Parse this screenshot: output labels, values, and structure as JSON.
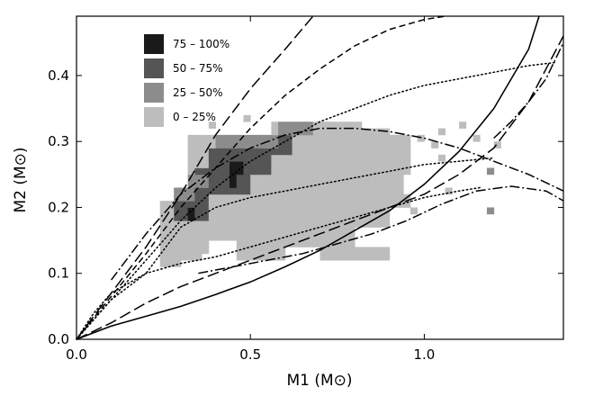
{
  "chart_data": {
    "type": "heatmap",
    "title": "",
    "xlabel": "M1 (M⊙)",
    "ylabel": "M2 (M⊙)",
    "xlim": [
      0.0,
      1.4
    ],
    "ylim": [
      0.0,
      0.49
    ],
    "grid": false,
    "x_ticks": [
      {
        "value": 0.0,
        "label": "0.0"
      },
      {
        "value": 0.5,
        "label": "0.5"
      },
      {
        "value": 1.0,
        "label": "1.0"
      }
    ],
    "y_ticks": [
      {
        "value": 0.0,
        "label": "0.0"
      },
      {
        "value": 0.1,
        "label": "0.1"
      },
      {
        "value": 0.2,
        "label": "0.2"
      },
      {
        "value": 0.3,
        "label": "0.3"
      },
      {
        "value": 0.4,
        "label": "0.4"
      }
    ],
    "legend_position": "top-left",
    "legend": [
      {
        "label": "75 – 100%",
        "color": "#1a1a1a",
        "level": 3
      },
      {
        "label": "50 – 75%",
        "color": "#555555",
        "level": 2
      },
      {
        "label": "25 – 50%",
        "color": "#8c8c8c",
        "level": 1
      },
      {
        "label": "0 – 25%",
        "color": "#bdbdbd",
        "level": 0
      }
    ],
    "cell_size": {
      "dm1": 0.02,
      "dm2": 0.01
    },
    "heat_regions": [
      {
        "level": 0,
        "m1_range": [
          0.24,
          0.3
        ],
        "m2_range": [
          0.11,
          0.21
        ]
      },
      {
        "level": 0,
        "m1_range": [
          0.3,
          0.9
        ],
        "m2_range": [
          0.12,
          0.22
        ]
      },
      {
        "level": 0,
        "m1_range": [
          0.32,
          0.96
        ],
        "m2_range": [
          0.2,
          0.31
        ]
      },
      {
        "level": 0,
        "m1_range": [
          0.56,
          0.82
        ],
        "m2_range": [
          0.31,
          0.33
        ]
      },
      {
        "level": 0,
        "m1_range": [
          0.72,
          0.9
        ],
        "m2_range": [
          0.29,
          0.32
        ]
      },
      {
        "level": 2,
        "m1_range": [
          0.28,
          0.38
        ],
        "m2_range": [
          0.18,
          0.22
        ]
      },
      {
        "level": 2,
        "m1_range": [
          0.34,
          0.5
        ],
        "m2_range": [
          0.22,
          0.26
        ]
      },
      {
        "level": 2,
        "m1_range": [
          0.38,
          0.56
        ],
        "m2_range": [
          0.25,
          0.29
        ]
      },
      {
        "level": 2,
        "m1_range": [
          0.5,
          0.62
        ],
        "m2_range": [
          0.28,
          0.31
        ]
      },
      {
        "level": 1,
        "m1_range": [
          0.28,
          0.34
        ],
        "m2_range": [
          0.21,
          0.23
        ]
      },
      {
        "level": 1,
        "m1_range": [
          0.32,
          0.38
        ],
        "m2_range": [
          0.23,
          0.25
        ]
      },
      {
        "level": 1,
        "m1_range": [
          0.4,
          0.58
        ],
        "m2_range": [
          0.29,
          0.31
        ]
      },
      {
        "level": 1,
        "m1_range": [
          0.58,
          0.68
        ],
        "m2_range": [
          0.31,
          0.33
        ]
      },
      {
        "level": 3,
        "m1_range": [
          0.32,
          0.34
        ],
        "m2_range": [
          0.18,
          0.2
        ]
      },
      {
        "level": 3,
        "m1_range": [
          0.44,
          0.46
        ],
        "m2_range": [
          0.23,
          0.25
        ]
      },
      {
        "level": 3,
        "m1_range": [
          0.44,
          0.48
        ],
        "m2_range": [
          0.25,
          0.27
        ]
      }
    ],
    "heat_holes": [
      {
        "m1_range": [
          0.38,
          0.46
        ],
        "m2_range": [
          0.12,
          0.15
        ]
      },
      {
        "m1_range": [
          0.6,
          0.7
        ],
        "m2_range": [
          0.12,
          0.14
        ]
      },
      {
        "m1_range": [
          0.8,
          0.9
        ],
        "m2_range": [
          0.14,
          0.17
        ]
      },
      {
        "m1_range": [
          0.94,
          0.98
        ],
        "m2_range": [
          0.22,
          0.25
        ]
      },
      {
        "m1_range": [
          0.36,
          0.4
        ],
        "m2_range": [
          0.12,
          0.13
        ]
      }
    ],
    "scattered_cells": [
      {
        "m1": 0.98,
        "m2": 0.3,
        "level": 0
      },
      {
        "m1": 1.02,
        "m2": 0.29,
        "level": 0
      },
      {
        "m1": 1.04,
        "m2": 0.31,
        "level": 0
      },
      {
        "m1": 1.1,
        "m2": 0.32,
        "level": 0
      },
      {
        "m1": 1.14,
        "m2": 0.3,
        "level": 0
      },
      {
        "m1": 1.04,
        "m2": 0.27,
        "level": 0
      },
      {
        "m1": 1.2,
        "m2": 0.29,
        "level": 0
      },
      {
        "m1": 1.18,
        "m2": 0.25,
        "level": 1
      },
      {
        "m1": 1.18,
        "m2": 0.19,
        "level": 1
      },
      {
        "m1": 1.06,
        "m2": 0.22,
        "level": 0
      },
      {
        "m1": 0.96,
        "m2": 0.19,
        "level": 0
      },
      {
        "m1": 0.56,
        "m2": 0.2,
        "level": 0
      },
      {
        "m1": 0.74,
        "m2": 0.22,
        "level": 0
      },
      {
        "m1": 0.78,
        "m2": 0.18,
        "level": 0
      },
      {
        "m1": 0.38,
        "m2": 0.32,
        "level": 0
      },
      {
        "m1": 0.48,
        "m2": 0.33,
        "level": 0
      }
    ],
    "series": [
      {
        "name": "solid",
        "dash": "solid",
        "x": [
          0.0,
          0.1,
          0.2,
          0.3,
          0.4,
          0.5,
          0.6,
          0.7,
          0.8,
          0.9,
          1.0,
          1.1,
          1.2,
          1.3,
          1.33
        ],
        "y": [
          0.0,
          0.02,
          0.035,
          0.05,
          0.068,
          0.087,
          0.11,
          0.135,
          0.165,
          0.195,
          0.235,
          0.285,
          0.35,
          0.44,
          0.49
        ]
      },
      {
        "name": "short-dash",
        "dash": "short-dash",
        "x": [
          0.0,
          0.1,
          0.2,
          0.3,
          0.4,
          0.5,
          0.6,
          0.7,
          0.8,
          0.9,
          1.0,
          1.06
        ],
        "y": [
          0.0,
          0.065,
          0.13,
          0.2,
          0.26,
          0.32,
          0.37,
          0.41,
          0.445,
          0.47,
          0.485,
          0.49
        ]
      },
      {
        "name": "long-dash",
        "dash": "long-dash",
        "x": [
          0.0,
          0.1,
          0.2,
          0.3,
          0.4,
          0.5,
          0.6,
          0.7,
          0.8,
          0.9,
          1.0,
          1.1,
          1.2,
          1.3,
          1.4
        ],
        "y": [
          0.0,
          0.025,
          0.055,
          0.08,
          0.1,
          0.12,
          0.14,
          0.16,
          0.18,
          0.2,
          0.22,
          0.25,
          0.29,
          0.36,
          0.46
        ]
      },
      {
        "name": "long-dash-upper",
        "dash": "long-dash",
        "x": [
          0.0,
          0.1,
          0.2,
          0.3,
          0.4,
          0.5,
          0.6,
          0.68
        ],
        "y": [
          0.0,
          0.07,
          0.14,
          0.22,
          0.31,
          0.38,
          0.44,
          0.49
        ]
      },
      {
        "name": "dotted-upper",
        "dash": "dotted",
        "x": [
          0.0,
          0.1,
          0.2,
          0.3,
          0.4,
          0.5,
          0.6,
          0.7,
          0.8,
          0.9,
          1.0,
          1.1,
          1.2,
          1.3,
          1.38
        ],
        "y": [
          0.0,
          0.06,
          0.12,
          0.18,
          0.23,
          0.27,
          0.3,
          0.33,
          0.35,
          0.37,
          0.385,
          0.395,
          0.405,
          0.415,
          0.42
        ]
      },
      {
        "name": "dotted-middle",
        "dash": "dotted",
        "x": [
          0.0,
          0.1,
          0.2,
          0.3,
          0.4,
          0.5,
          0.6,
          0.7,
          0.8,
          0.9,
          1.0,
          1.1,
          1.2
        ],
        "y": [
          0.0,
          0.06,
          0.1,
          0.17,
          0.2,
          0.215,
          0.225,
          0.235,
          0.245,
          0.255,
          0.265,
          0.27,
          0.275
        ]
      },
      {
        "name": "dotted-lower",
        "dash": "dotted",
        "x": [
          0.0,
          0.05,
          0.1,
          0.2,
          0.3,
          0.4,
          0.5,
          0.6,
          0.7,
          0.8,
          0.9,
          1.0,
          1.1,
          1.16
        ],
        "y": [
          0.0,
          0.04,
          0.07,
          0.1,
          0.115,
          0.125,
          0.14,
          0.155,
          0.17,
          0.185,
          0.2,
          0.215,
          0.225,
          0.23
        ]
      },
      {
        "name": "dash-dot-upper",
        "dash": "dash-dot",
        "x": [
          0.1,
          0.2,
          0.3,
          0.4,
          0.5,
          0.6,
          0.7,
          0.8,
          0.9,
          1.0,
          1.1,
          1.2,
          1.3,
          1.4
        ],
        "y": [
          0.09,
          0.16,
          0.22,
          0.26,
          0.29,
          0.31,
          0.32,
          0.32,
          0.315,
          0.305,
          0.29,
          0.27,
          0.25,
          0.225
        ]
      },
      {
        "name": "dash-dot-lower",
        "dash": "dash-dot",
        "x": [
          0.35,
          0.45,
          0.55,
          0.65,
          0.75,
          0.85,
          0.95,
          1.05,
          1.15,
          1.25,
          1.35,
          1.4
        ],
        "y": [
          0.1,
          0.11,
          0.12,
          0.13,
          0.145,
          0.16,
          0.18,
          0.205,
          0.225,
          0.232,
          0.225,
          0.21
        ]
      },
      {
        "name": "dash-dot-right",
        "dash": "dash-dot",
        "x": [
          1.2,
          1.25,
          1.3,
          1.35,
          1.4
        ],
        "y": [
          0.305,
          0.33,
          0.36,
          0.395,
          0.45
        ]
      }
    ]
  }
}
